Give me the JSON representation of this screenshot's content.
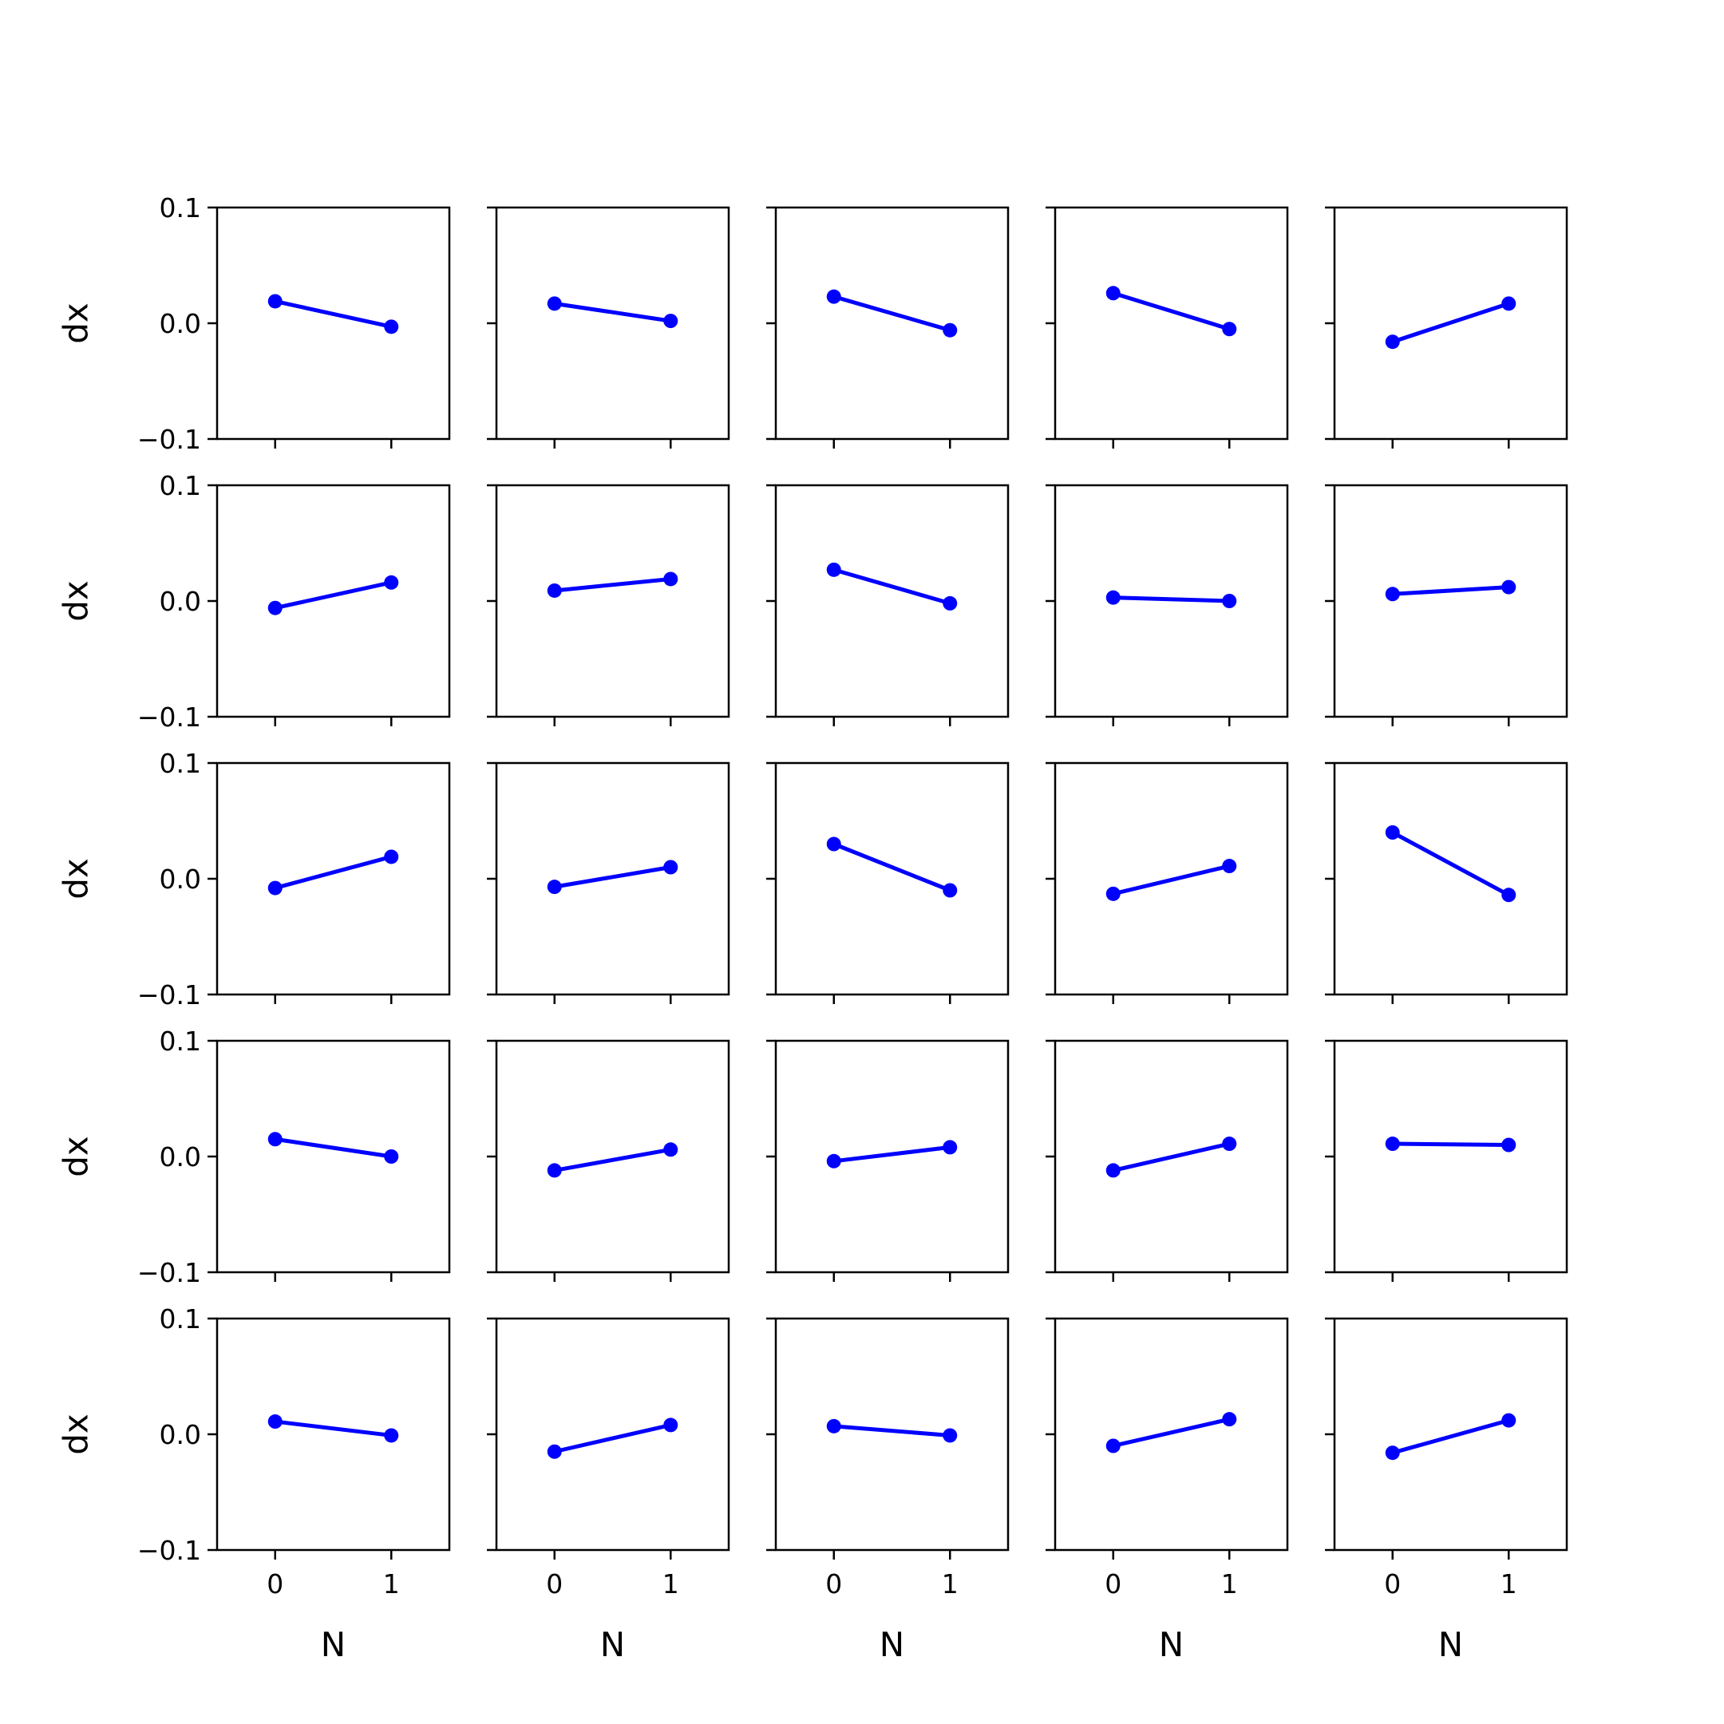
{
  "colors": {
    "series": "#0000ff",
    "axes": "#000000",
    "background": "#ffffff"
  },
  "chart_data": {
    "type": "line",
    "layout": "5x5 grid of small-multiple subplots, shared axes",
    "xlabel": "N",
    "ylabel": "dx",
    "x": [
      0,
      1
    ],
    "xticks": [
      "0",
      "1"
    ],
    "xlim": [
      -0.5,
      1.5
    ],
    "yticks": [
      "−0.1",
      "0.0",
      "0.1"
    ],
    "ytick_values": [
      -0.1,
      0.0,
      0.1
    ],
    "ylim": [
      -0.1,
      0.1
    ],
    "grid": false,
    "marker": "circle",
    "panels": [
      [
        [
          0.019,
          -0.003
        ],
        [
          0.017,
          0.002
        ],
        [
          0.023,
          -0.006
        ],
        [
          0.026,
          -0.005
        ],
        [
          -0.016,
          0.017
        ]
      ],
      [
        [
          -0.006,
          0.016
        ],
        [
          0.009,
          0.019
        ],
        [
          0.027,
          -0.002
        ],
        [
          0.003,
          0.0
        ],
        [
          0.006,
          0.012
        ]
      ],
      [
        [
          -0.008,
          0.019
        ],
        [
          -0.007,
          0.01
        ],
        [
          0.03,
          -0.01
        ],
        [
          -0.013,
          0.011
        ],
        [
          0.04,
          -0.014
        ]
      ],
      [
        [
          0.015,
          0.0
        ],
        [
          -0.012,
          0.006
        ],
        [
          -0.004,
          0.008
        ],
        [
          -0.012,
          0.011
        ],
        [
          0.011,
          0.01
        ]
      ],
      [
        [
          0.011,
          -0.001
        ],
        [
          -0.015,
          0.008
        ],
        [
          0.007,
          -0.001
        ],
        [
          -0.01,
          0.013
        ],
        [
          -0.016,
          0.012
        ]
      ]
    ]
  }
}
